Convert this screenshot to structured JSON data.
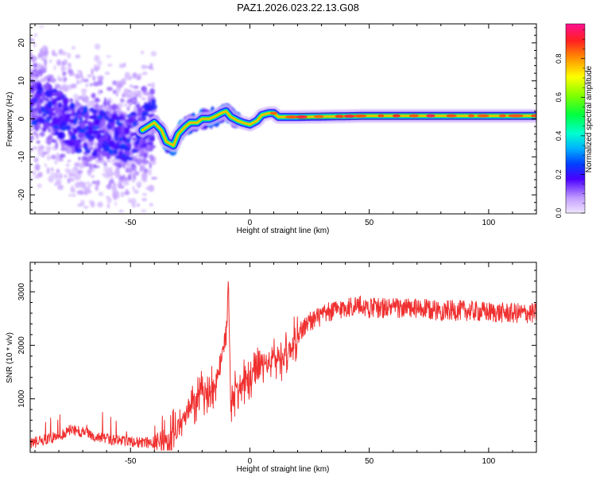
{
  "title": "PAZ1.2026.023.22.13.G08",
  "chart_data": [
    {
      "type": "heatmap",
      "title": "PAZ1.2026.023.22.13.G08",
      "xlabel": "Height of straight line (km)",
      "ylabel": "Frequency (Hz)",
      "xlim": [
        -92,
        120
      ],
      "ylim": [
        -25,
        25
      ],
      "xticks": [
        -50,
        0,
        50,
        100
      ],
      "yticks": [
        -20,
        -10,
        0,
        10,
        20
      ],
      "ridge_x": [
        -92,
        -85,
        -80,
        -75,
        -70,
        -65,
        -60,
        -55,
        -50,
        -45,
        -40,
        -37,
        -35,
        -32,
        -30,
        -27,
        -25,
        -22,
        -20,
        -17,
        -15,
        -12,
        -10,
        -8,
        -5,
        -3,
        0,
        3,
        5,
        8,
        10,
        12,
        15,
        20,
        30,
        40,
        50,
        60,
        70,
        80,
        90,
        100,
        110,
        120
      ],
      "ridge_freq": [
        4,
        3,
        1,
        -2,
        -3,
        -3.5,
        -4,
        -5,
        -5,
        -3,
        -1,
        -3,
        -6,
        -7,
        -4,
        -2,
        -1,
        -1,
        0,
        0,
        0.5,
        1.5,
        2,
        0.5,
        -0.5,
        -1,
        -1.5,
        -0.5,
        1,
        1.5,
        1.5,
        0.5,
        0.5,
        0.5,
        0.6,
        0.7,
        0.8,
        0.8,
        0.8,
        0.8,
        0.8,
        0.8,
        0.8,
        0.8
      ],
      "colorbar": {
        "label": "Normalized spectral amplitude",
        "ticks": [
          "0.0",
          "0.2",
          "0.4",
          "0.6",
          "0.8"
        ],
        "range": [
          0,
          0.98
        ]
      }
    },
    {
      "type": "line",
      "xlabel": "Height of straight line (km)",
      "ylabel": "SNR (10 * v/v)",
      "xlim": [
        -92,
        120
      ],
      "ylim": [
        0,
        3550
      ],
      "xticks": [
        -50,
        0,
        50,
        100
      ],
      "yticks": [
        1000,
        2000,
        3000
      ],
      "color": "#f03030",
      "x": [
        -92,
        -85,
        -80,
        -75,
        -70,
        -65,
        -60,
        -55,
        -50,
        -45,
        -40,
        -35,
        -30,
        -25,
        -20,
        -15,
        -12,
        -10,
        -9,
        -8,
        -5,
        0,
        5,
        10,
        15,
        20,
        25,
        30,
        35,
        40,
        45,
        50,
        55,
        60,
        70,
        80,
        90,
        100,
        110,
        120
      ],
      "values": [
        160,
        250,
        300,
        420,
        380,
        300,
        250,
        220,
        200,
        180,
        190,
        300,
        450,
        800,
        1100,
        1200,
        1700,
        2200,
        3300,
        900,
        1200,
        1350,
        1600,
        1750,
        1800,
        2200,
        2450,
        2550,
        2650,
        2700,
        2750,
        2700,
        2700,
        2700,
        2680,
        2650,
        2650,
        2620,
        2600,
        2600
      ]
    }
  ]
}
